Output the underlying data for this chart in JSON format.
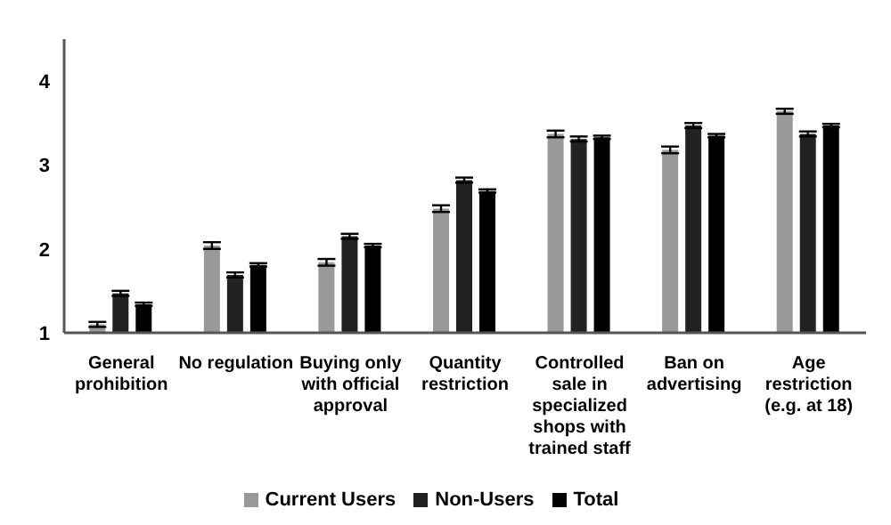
{
  "chart_data": {
    "type": "bar",
    "categories": [
      "General prohibition",
      "No regulation",
      "Buying only with official approval",
      "Quantity restriction",
      "Controlled sale in specialized shops with trained staff",
      "Ban on advertising",
      "Age restriction (e.g. at 18)"
    ],
    "series": [
      {
        "name": "Current Users",
        "color": "#999999",
        "values": [
          1.1,
          2.04,
          1.84,
          2.48,
          3.37,
          3.18,
          3.64
        ],
        "errors": [
          0.03,
          0.04,
          0.04,
          0.04,
          0.04,
          0.04,
          0.03
        ]
      },
      {
        "name": "Non-Users",
        "color": "#222222",
        "values": [
          1.47,
          1.69,
          2.15,
          2.82,
          3.31,
          3.47,
          3.37
        ],
        "errors": [
          0.03,
          0.03,
          0.03,
          0.03,
          0.03,
          0.03,
          0.03
        ]
      },
      {
        "name": "Total",
        "color": "#000000",
        "values": [
          1.34,
          1.81,
          2.04,
          2.69,
          3.33,
          3.35,
          3.47
        ],
        "errors": [
          0.02,
          0.02,
          0.02,
          0.02,
          0.02,
          0.02,
          0.02
        ]
      }
    ],
    "ylim": [
      1,
      4.5
    ],
    "yticks": [
      1,
      2,
      3,
      4
    ],
    "grid": false,
    "legend": "bottom"
  }
}
